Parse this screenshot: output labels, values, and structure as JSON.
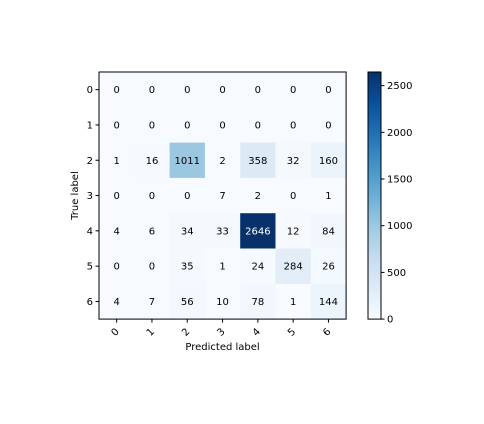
{
  "chart_data": {
    "type": "heatmap",
    "title": "",
    "xlabel": "Predicted label",
    "ylabel": "True label",
    "x_categories": [
      "0",
      "1",
      "2",
      "3",
      "4",
      "5",
      "6"
    ],
    "y_categories": [
      "0",
      "1",
      "2",
      "3",
      "4",
      "5",
      "6"
    ],
    "values": [
      [
        0,
        0,
        0,
        0,
        0,
        0,
        0
      ],
      [
        0,
        0,
        0,
        0,
        0,
        0,
        0
      ],
      [
        1,
        16,
        1011,
        2,
        358,
        32,
        160
      ],
      [
        0,
        0,
        0,
        7,
        2,
        0,
        1
      ],
      [
        4,
        6,
        34,
        33,
        2646,
        12,
        84
      ],
      [
        0,
        0,
        35,
        1,
        24,
        284,
        26
      ],
      [
        4,
        7,
        56,
        10,
        78,
        1,
        144
      ]
    ],
    "colormap": "Blues",
    "color_range": [
      0,
      2646
    ],
    "colorbar_ticks": [
      "0",
      "500",
      "1000",
      "1500",
      "2000",
      "2500"
    ],
    "text_colors": {
      "light": "#ffffff",
      "dark": "#000000"
    },
    "grid": false,
    "x_tick_rotation": 45
  }
}
